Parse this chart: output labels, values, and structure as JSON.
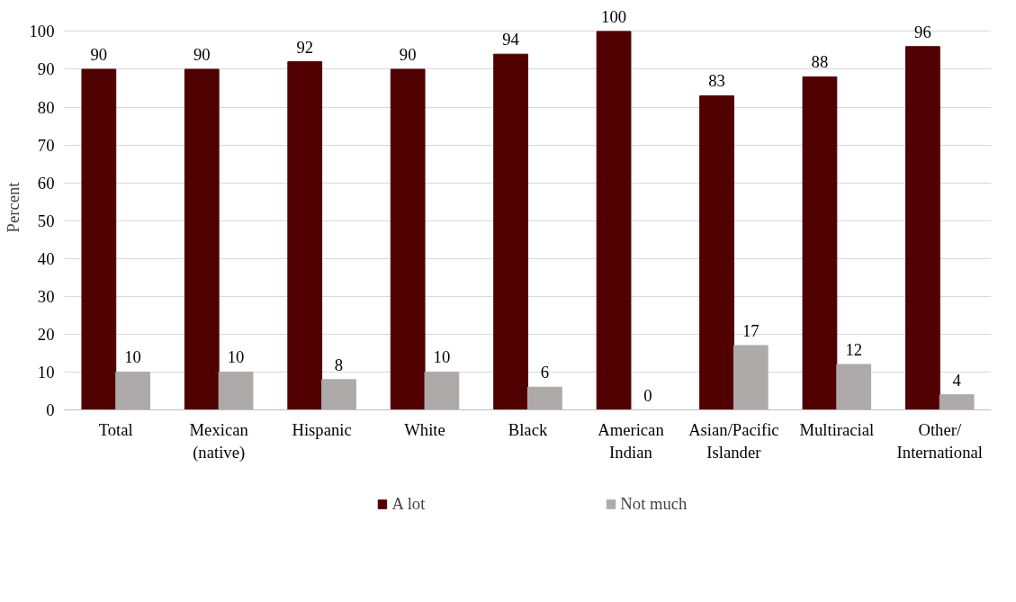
{
  "chart_data": {
    "type": "bar",
    "ylabel": "Percent",
    "categories": [
      "Total",
      "Mexican (native)",
      "Hispanic",
      "White",
      "Black",
      "American Indian",
      "Asian/Pacific Islander",
      "Multiracial",
      "Other/International"
    ],
    "series": [
      {
        "name": "A lot",
        "color": "#500000",
        "values": [
          90,
          90,
          92,
          90,
          94,
          100,
          83,
          88,
          96
        ]
      },
      {
        "name": "Not much",
        "color": "#aeaaaa",
        "values": [
          10,
          10,
          8,
          10,
          6,
          0,
          17,
          12,
          4
        ]
      }
    ],
    "ylim": [
      0,
      100
    ],
    "yticks": [
      0,
      10,
      20,
      30,
      40,
      50,
      60,
      70,
      80,
      90,
      100
    ],
    "grid": "y",
    "legend": "bottom",
    "data_labels": true
  }
}
